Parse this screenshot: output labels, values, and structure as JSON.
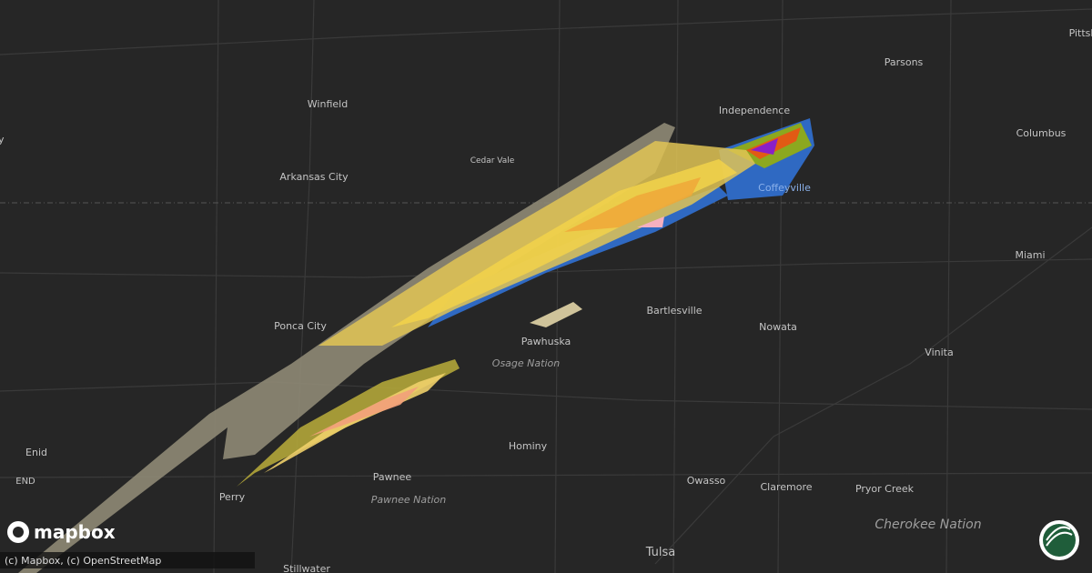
{
  "places": {
    "pittsburg": "Pittsb",
    "parsons": "Parsons",
    "winfield": "Winfield",
    "independence": "Independence",
    "columbus": "Columbus",
    "cedar_vale": "Cedar Vale",
    "arkansas_city": "Arkansas City",
    "coffeyville": "Coffeyville",
    "miami": "Miami",
    "bartlesville": "Bartlesville",
    "ponca_city": "Ponca City",
    "nowata": "Nowata",
    "pawhuska": "Pawhuska",
    "vinita": "Vinita",
    "enid": "Enid",
    "end": "END",
    "hominy": "Hominy",
    "pawnee": "Pawnee",
    "perry": "Perry",
    "claremore": "Claremore",
    "pryor_creek": "Pryor Creek",
    "owasso": "Owasso",
    "tulsa": "Tulsa",
    "stillwater": "Stillwater",
    "edge": "y"
  },
  "regions": {
    "osage": "Osage Nation",
    "pawnee": "Pawnee Nation",
    "cherokee": "Cherokee Nation"
  },
  "logo": "mapbox",
  "attribution": "(c) Mapbox, (c) OpenStreetMap"
}
